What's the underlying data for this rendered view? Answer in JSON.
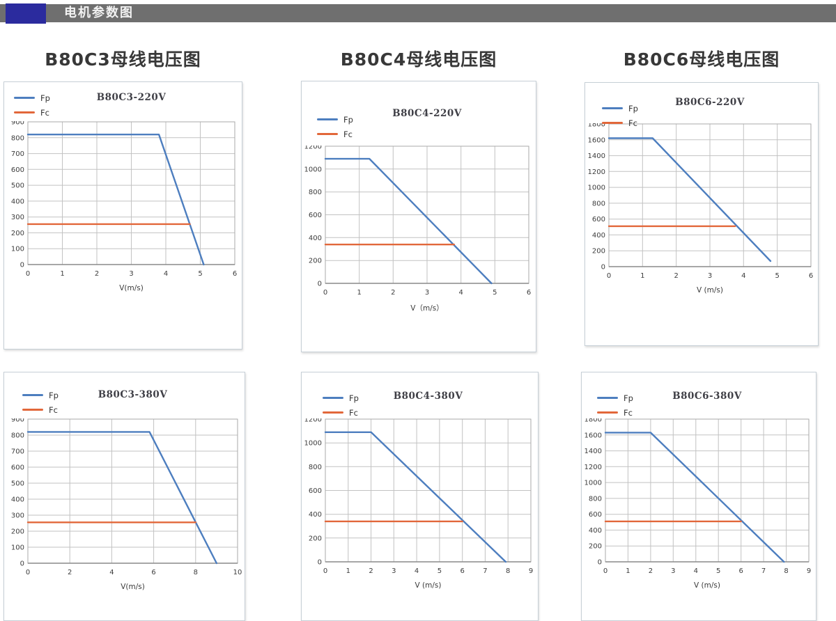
{
  "header": {
    "title": "电机参数图",
    "bar_color": "#6f6f6f",
    "accent_color": "#2b2b9e"
  },
  "section_titles": [
    "B80C3母线电压图",
    "B80C4母线电压图",
    "B80C6母线电压图"
  ],
  "colors": {
    "fp": "#4d7ebf",
    "fc": "#e2673a",
    "grid": "#c2c2c2",
    "frame": "#a9a9a9",
    "axis": "#8a8a8a"
  },
  "chart_data": [
    {
      "type": "line",
      "title": "B80C3-220V",
      "xlabel": "V(m/s)",
      "ylabel": "",
      "xlim": [
        0,
        6
      ],
      "xstep": 1,
      "ylim": [
        0,
        900
      ],
      "ystep": 100,
      "grid": true,
      "legend_position": "top-left",
      "series": [
        {
          "name": "Fp",
          "color": "#4d7ebf",
          "points": [
            [
              0,
              820
            ],
            [
              3.8,
              820
            ],
            [
              5.1,
              0
            ]
          ]
        },
        {
          "name": "Fc",
          "color": "#e2673a",
          "points": [
            [
              0,
              255
            ],
            [
              4.7,
              255
            ]
          ]
        }
      ]
    },
    {
      "type": "line",
      "title": "B80C4-220V",
      "xlabel": "V（m/s）",
      "ylabel": "",
      "xlim": [
        0,
        6
      ],
      "xstep": 1,
      "ylim": [
        0,
        1200
      ],
      "ystep": 200,
      "grid": true,
      "legend_position": "top-left",
      "series": [
        {
          "name": "Fp",
          "color": "#4d7ebf",
          "points": [
            [
              0,
              1090
            ],
            [
              1.3,
              1090
            ],
            [
              4.9,
              0
            ]
          ]
        },
        {
          "name": "Fc",
          "color": "#e2673a",
          "points": [
            [
              0,
              340
            ],
            [
              3.8,
              340
            ]
          ]
        }
      ]
    },
    {
      "type": "line",
      "title": "B80C6-220V",
      "xlabel": "V (m/s)",
      "ylabel": "",
      "xlim": [
        0,
        6
      ],
      "xstep": 1,
      "ylim": [
        0,
        1800
      ],
      "ystep": 200,
      "grid": true,
      "legend_position": "top-left",
      "series": [
        {
          "name": "Fp",
          "color": "#4d7ebf",
          "points": [
            [
              0,
              1620
            ],
            [
              1.3,
              1620
            ],
            [
              4.8,
              70
            ]
          ]
        },
        {
          "name": "Fc",
          "color": "#e2673a",
          "points": [
            [
              0,
              510
            ],
            [
              3.75,
              510
            ]
          ]
        }
      ]
    },
    {
      "type": "line",
      "title": "B80C3-380V",
      "xlabel": "V(m/s)",
      "ylabel": "",
      "xlim": [
        0,
        10
      ],
      "xstep": 2,
      "ylim": [
        0,
        900
      ],
      "ystep": 100,
      "grid": true,
      "legend_position": "top-left",
      "series": [
        {
          "name": "Fp",
          "color": "#4d7ebf",
          "points": [
            [
              0,
              820
            ],
            [
              5.8,
              820
            ],
            [
              9.0,
              0
            ]
          ]
        },
        {
          "name": "Fc",
          "color": "#e2673a",
          "points": [
            [
              0,
              255
            ],
            [
              8.0,
              255
            ]
          ]
        }
      ]
    },
    {
      "type": "line",
      "title": "B80C4-380V",
      "xlabel": "V (m/s)",
      "ylabel": "",
      "xlim": [
        0,
        9
      ],
      "xstep": 1,
      "ylim": [
        0,
        1200
      ],
      "ystep": 200,
      "grid": true,
      "legend_position": "top-left",
      "series": [
        {
          "name": "Fp",
          "color": "#4d7ebf",
          "points": [
            [
              0,
              1090
            ],
            [
              2.0,
              1090
            ],
            [
              7.9,
              0
            ]
          ]
        },
        {
          "name": "Fc",
          "color": "#e2673a",
          "points": [
            [
              0,
              340
            ],
            [
              6.0,
              340
            ]
          ]
        }
      ]
    },
    {
      "type": "line",
      "title": "B80C6-380V",
      "xlabel": "V (m/s)",
      "ylabel": "",
      "xlim": [
        0,
        9
      ],
      "xstep": 1,
      "ylim": [
        0,
        1800
      ],
      "ystep": 200,
      "grid": true,
      "legend_position": "top-left",
      "series": [
        {
          "name": "Fp",
          "color": "#4d7ebf",
          "points": [
            [
              0,
              1630
            ],
            [
              2.0,
              1630
            ],
            [
              7.9,
              0
            ]
          ]
        },
        {
          "name": "Fc",
          "color": "#e2673a",
          "points": [
            [
              0,
              510
            ],
            [
              6.0,
              510
            ]
          ]
        }
      ]
    }
  ]
}
